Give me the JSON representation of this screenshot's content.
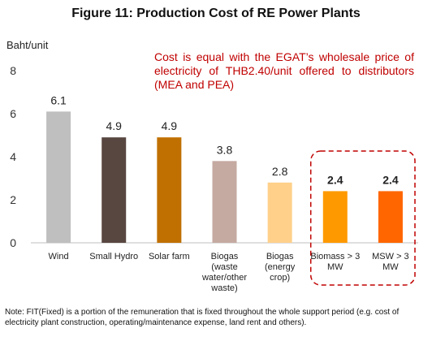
{
  "chart_data": {
    "type": "bar",
    "title": "Figure 11: Production Cost of RE Power Plants",
    "ylabel": "Baht/unit",
    "xlabel": "",
    "ylim": [
      0,
      8
    ],
    "yticks": [
      "0",
      "2",
      "4",
      "6",
      "8"
    ],
    "grid": false,
    "categories": [
      [
        "Wind"
      ],
      [
        "Small Hydro"
      ],
      [
        "Solar farm"
      ],
      [
        "Biogas",
        "(waste",
        "water/other",
        "waste)"
      ],
      [
        "Biogas",
        "(energy",
        "crop)"
      ],
      [
        "Biomass > 3",
        "MW"
      ],
      [
        "MSW > 3",
        "MW"
      ]
    ],
    "values": [
      6.1,
      4.9,
      4.9,
      3.8,
      2.8,
      2.4,
      2.4
    ],
    "value_labels": [
      "6.1",
      "4.9",
      "4.9",
      "3.8",
      "2.8",
      "2.4",
      "2.4"
    ],
    "bar_colors": [
      "#bfbfbf",
      "#584640",
      "#c07000",
      "#c5aaa2",
      "#fed08a",
      "#ff9900",
      "#ff6600"
    ],
    "highlight_bold": [
      false,
      false,
      false,
      false,
      false,
      true,
      true
    ],
    "highlight_group": [
      5,
      6
    ],
    "highlight_box_color": "#c00000",
    "annotation": "Cost is equal with the EGAT’s wholesale price of electricity of THB2.40/unit offered to distributors (MEA and PEA)",
    "annotation_color": "#c00000"
  },
  "note": "Note: FIT(Fixed) is a portion of the remuneration that is fixed throughout the whole support period (e.g. cost of electricity plant construction, operating/maintenance expense, land rent and others)."
}
